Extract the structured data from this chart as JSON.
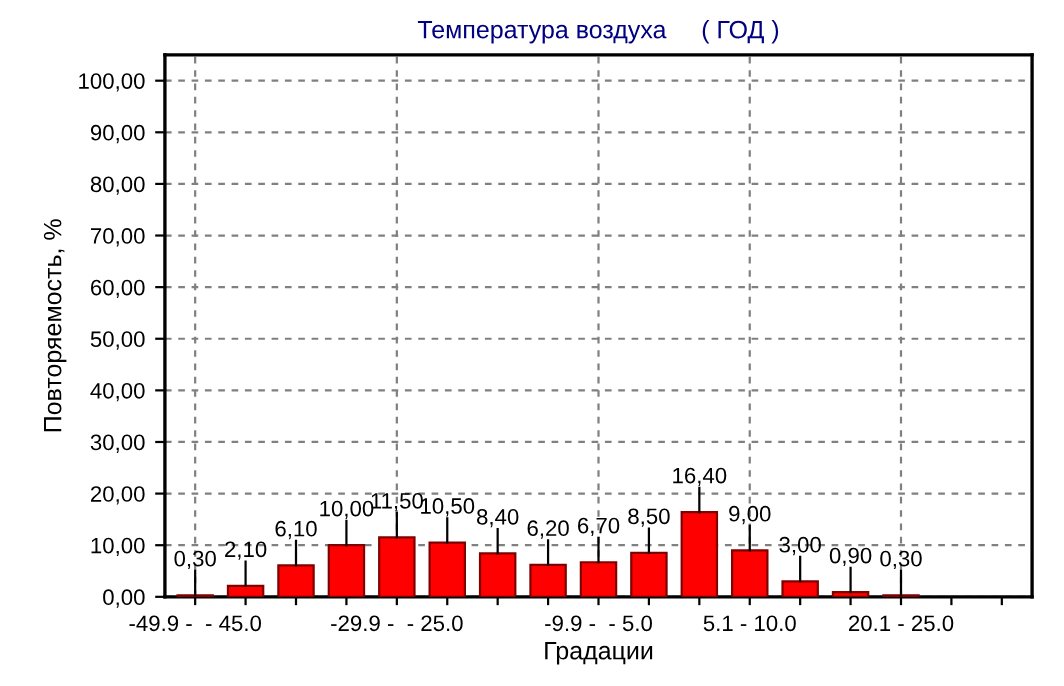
{
  "chart_data": {
    "type": "bar",
    "title": "Температура воздуха     ( ГОД )",
    "xlabel": "Градации",
    "ylabel": "Повторяемость, %",
    "categories": [
      "-49.9 -  - 45.0",
      null,
      null,
      null,
      "-29.9 -  - 25.0",
      null,
      null,
      null,
      "-9.9 -  - 5.0",
      null,
      null,
      "5.1 - 10.0",
      null,
      null,
      "20.1 - 25.0",
      null,
      null
    ],
    "series": [
      {
        "color": "#ff0000",
        "values": [
          0.3,
          2.1,
          6.1,
          10.0,
          11.5,
          10.5,
          8.4,
          6.2,
          6.7,
          8.5,
          16.4,
          9.0,
          3.0,
          0.9,
          0.3,
          null,
          null
        ],
        "value_labels": [
          "0,30",
          "2,10",
          "6,10",
          "10,00",
          "11,50",
          "10,50",
          "8,40",
          "6,20",
          "6,70",
          "8,50",
          "16,40",
          "9,00",
          "3,00",
          "0,90",
          "0,30",
          null,
          null
        ]
      }
    ],
    "ylim": [
      0,
      105
    ],
    "yticks": [
      {
        "value": 0,
        "label": "0,00"
      },
      {
        "value": 10,
        "label": "10,00"
      },
      {
        "value": 20,
        "label": "20,00"
      },
      {
        "value": 30,
        "label": "30,00"
      },
      {
        "value": 40,
        "label": "40,00"
      },
      {
        "value": 50,
        "label": "50,00"
      },
      {
        "value": 60,
        "label": "60,00"
      },
      {
        "value": 70,
        "label": "70,00"
      },
      {
        "value": 80,
        "label": "80,00"
      },
      {
        "value": 90,
        "label": "90,00"
      },
      {
        "value": 100,
        "label": "100,00"
      }
    ],
    "grid": true,
    "legend": false
  }
}
